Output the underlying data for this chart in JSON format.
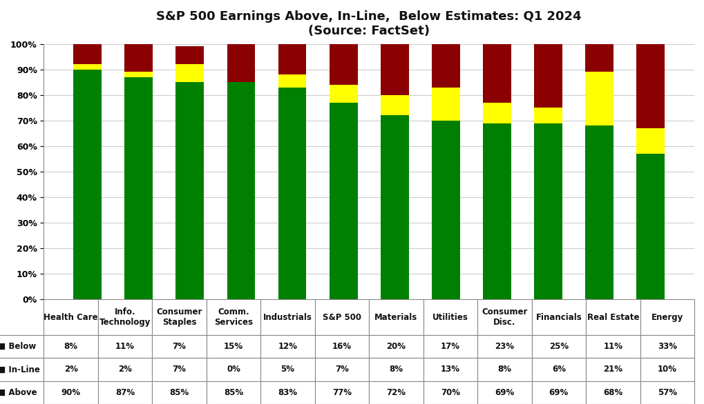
{
  "title": "S&P 500 Earnings Above, In-Line,  Below Estimates: Q1 2024",
  "subtitle": "(Source: FactSet)",
  "categories": [
    "Health Care",
    "Info.\nTechnology",
    "Consumer\nStaples",
    "Comm.\nServices",
    "Industrials",
    "S&P 500",
    "Materials",
    "Utilities",
    "Consumer\nDisc.",
    "Financials",
    "Real Estate",
    "Energy"
  ],
  "below": [
    8,
    11,
    7,
    15,
    12,
    16,
    20,
    17,
    23,
    25,
    11,
    33
  ],
  "inline": [
    2,
    2,
    7,
    0,
    5,
    7,
    8,
    13,
    8,
    6,
    21,
    10
  ],
  "above": [
    90,
    87,
    85,
    85,
    83,
    77,
    72,
    70,
    69,
    69,
    68,
    57
  ],
  "below_color": "#8B0000",
  "inline_color": "#FFFF00",
  "above_color": "#008000",
  "background_color": "#FFFFFF",
  "ylim": [
    0,
    100
  ],
  "yticks": [
    0,
    10,
    20,
    30,
    40,
    50,
    60,
    70,
    80,
    90,
    100
  ],
  "ytick_labels": [
    "0%",
    "10%",
    "20%",
    "30%",
    "40%",
    "50%",
    "60%",
    "70%",
    "80%",
    "90%",
    "100%"
  ],
  "title_fontsize": 13,
  "subtitle_fontsize": 11,
  "bar_width": 0.55
}
